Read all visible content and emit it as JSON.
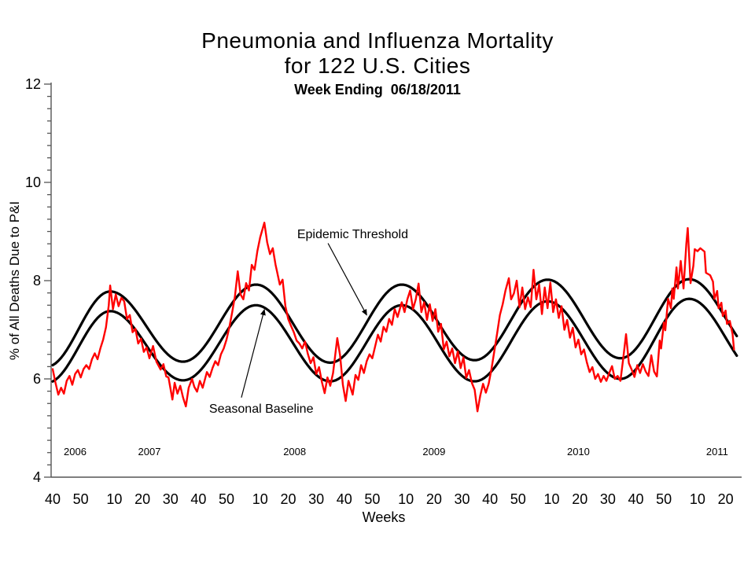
{
  "header": {
    "title_line1": "Pneumonia and Influenza Mortality",
    "title_line2": "for 122 U.S. Cities",
    "title_line3": "Week Ending  06/18/2011"
  },
  "chart_data": {
    "type": "line",
    "title": "Pneumonia and Influenza Mortality for 122 U.S. Cities",
    "subtitle": "Week Ending  06/18/2011",
    "xlabel": "Weeks",
    "ylabel": "% of All Deaths Due to P&I",
    "ylim": [
      4,
      12
    ],
    "y_major_ticks": [
      4,
      6,
      8,
      10,
      12
    ],
    "y_minor_step": 0.25,
    "x_range_weeks": [
      0,
      244
    ],
    "grid": false,
    "x_ticks": [
      {
        "t": 0,
        "label": "40"
      },
      {
        "t": 10,
        "label": "50"
      },
      {
        "t": 22,
        "label": "10"
      },
      {
        "t": 32,
        "label": "20"
      },
      {
        "t": 42,
        "label": "30"
      },
      {
        "t": 52,
        "label": "40"
      },
      {
        "t": 62,
        "label": "50"
      },
      {
        "t": 74,
        "label": "10"
      },
      {
        "t": 84,
        "label": "20"
      },
      {
        "t": 94,
        "label": "30"
      },
      {
        "t": 104,
        "label": "40"
      },
      {
        "t": 114,
        "label": "50"
      },
      {
        "t": 126,
        "label": "10"
      },
      {
        "t": 136,
        "label": "20"
      },
      {
        "t": 146,
        "label": "30"
      },
      {
        "t": 156,
        "label": "40"
      },
      {
        "t": 166,
        "label": "50"
      },
      {
        "t": 178,
        "label": "10"
      },
      {
        "t": 188,
        "label": "20"
      },
      {
        "t": 198,
        "label": "30"
      },
      {
        "t": 208,
        "label": "40"
      },
      {
        "t": 218,
        "label": "50"
      },
      {
        "t": 230,
        "label": "10"
      },
      {
        "t": 240,
        "label": "20"
      }
    ],
    "year_labels": [
      {
        "t": 8,
        "label": "2006"
      },
      {
        "t": 34.5,
        "label": "2007"
      },
      {
        "t": 86.3,
        "label": "2008"
      },
      {
        "t": 136,
        "label": "2009"
      },
      {
        "t": 187.5,
        "label": "2010"
      },
      {
        "t": 237,
        "label": "2011"
      }
    ],
    "series": [
      {
        "id": "epidemic_threshold",
        "label": "Epidemic Threshold",
        "color": "#000000",
        "width": 3.2,
        "kind": "smooth_extrema",
        "extrema": [
          [
            -2,
            6.25
          ],
          [
            20.5,
            7.78
          ],
          [
            46.5,
            6.35
          ],
          [
            72.5,
            7.92
          ],
          [
            99,
            6.33
          ],
          [
            124.5,
            7.92
          ],
          [
            150.5,
            6.38
          ],
          [
            176.5,
            8.02
          ],
          [
            202.5,
            6.42
          ],
          [
            227,
            8.03
          ],
          [
            253,
            6.45
          ]
        ]
      },
      {
        "id": "seasonal_baseline",
        "label": "Seasonal Baseline",
        "color": "#000000",
        "width": 3.2,
        "kind": "smooth_extrema",
        "extrema": [
          [
            -2,
            5.92
          ],
          [
            20.5,
            7.38
          ],
          [
            46.5,
            5.97
          ],
          [
            72.5,
            7.5
          ],
          [
            99,
            5.95
          ],
          [
            124.5,
            7.5
          ],
          [
            150.5,
            5.95
          ],
          [
            176.5,
            7.58
          ],
          [
            202.5,
            6.0
          ],
          [
            227,
            7.63
          ],
          [
            253,
            6.05
          ]
        ]
      },
      {
        "id": "observed",
        "color": "#ff0000",
        "width": 2.4,
        "kind": "points",
        "points": [
          [
            0,
            6.2
          ],
          [
            1,
            5.92
          ],
          [
            2,
            5.68
          ],
          [
            3,
            5.82
          ],
          [
            4,
            5.7
          ],
          [
            5,
            5.96
          ],
          [
            6,
            6.06
          ],
          [
            7,
            5.88
          ],
          [
            8,
            6.1
          ],
          [
            9,
            6.18
          ],
          [
            10,
            6.03
          ],
          [
            11,
            6.2
          ],
          [
            12,
            6.28
          ],
          [
            13,
            6.2
          ],
          [
            14,
            6.4
          ],
          [
            15,
            6.52
          ],
          [
            16,
            6.4
          ],
          [
            17,
            6.62
          ],
          [
            18,
            6.8
          ],
          [
            19,
            7.05
          ],
          [
            20,
            7.5
          ],
          [
            20.5,
            7.9
          ],
          [
            21.5,
            7.42
          ],
          [
            22.5,
            7.72
          ],
          [
            23.5,
            7.48
          ],
          [
            24.5,
            7.65
          ],
          [
            25.5,
            7.58
          ],
          [
            26.5,
            7.22
          ],
          [
            27.5,
            7.3
          ],
          [
            28.5,
            6.95
          ],
          [
            29.5,
            7.02
          ],
          [
            30.5,
            6.72
          ],
          [
            31.5,
            6.82
          ],
          [
            32.5,
            6.55
          ],
          [
            33.5,
            6.64
          ],
          [
            34.5,
            6.42
          ],
          [
            35.8,
            6.67
          ],
          [
            37,
            6.35
          ],
          [
            38.5,
            6.19
          ],
          [
            39.5,
            6.3
          ],
          [
            40.5,
            6.05
          ],
          [
            41.3,
            6.03
          ],
          [
            42.7,
            5.58
          ],
          [
            43.5,
            5.92
          ],
          [
            44.5,
            5.7
          ],
          [
            45.5,
            5.86
          ],
          [
            46.5,
            5.62
          ],
          [
            47.5,
            5.44
          ],
          [
            48.5,
            5.82
          ],
          [
            49.7,
            6.0
          ],
          [
            50.5,
            5.84
          ],
          [
            51.5,
            5.74
          ],
          [
            52.5,
            5.96
          ],
          [
            53.5,
            5.82
          ],
          [
            55,
            6.14
          ],
          [
            56,
            6.04
          ],
          [
            57,
            6.22
          ],
          [
            58,
            6.36
          ],
          [
            59,
            6.28
          ],
          [
            60,
            6.5
          ],
          [
            61,
            6.62
          ],
          [
            62,
            6.8
          ],
          [
            63,
            7.05
          ],
          [
            64,
            7.35
          ],
          [
            65,
            7.68
          ],
          [
            66,
            8.19
          ],
          [
            67,
            7.72
          ],
          [
            68,
            7.62
          ],
          [
            69,
            7.95
          ],
          [
            70,
            7.8
          ],
          [
            71,
            8.32
          ],
          [
            72,
            8.22
          ],
          [
            73,
            8.6
          ],
          [
            74,
            8.88
          ],
          [
            75.5,
            9.18
          ],
          [
            76.5,
            8.78
          ],
          [
            77.5,
            8.54
          ],
          [
            78.5,
            8.66
          ],
          [
            79.5,
            8.32
          ],
          [
            80,
            8.19
          ],
          [
            81,
            7.92
          ],
          [
            82,
            8.02
          ],
          [
            83,
            7.48
          ],
          [
            84,
            7.22
          ],
          [
            85,
            7.08
          ],
          [
            86,
            6.95
          ],
          [
            87,
            6.78
          ],
          [
            88,
            6.72
          ],
          [
            89,
            6.62
          ],
          [
            90,
            6.76
          ],
          [
            91,
            6.51
          ],
          [
            92,
            6.32
          ],
          [
            93,
            6.44
          ],
          [
            94,
            6.1
          ],
          [
            95,
            6.24
          ],
          [
            96,
            5.94
          ],
          [
            97,
            5.71
          ],
          [
            98,
            6.03
          ],
          [
            99,
            5.86
          ],
          [
            100,
            6.12
          ],
          [
            101.5,
            6.83
          ],
          [
            102.5,
            6.48
          ],
          [
            103.5,
            5.88
          ],
          [
            104.5,
            5.55
          ],
          [
            105.5,
            5.96
          ],
          [
            107,
            5.68
          ],
          [
            108,
            6.08
          ],
          [
            109,
            5.98
          ],
          [
            110,
            6.28
          ],
          [
            111,
            6.12
          ],
          [
            112,
            6.36
          ],
          [
            113,
            6.5
          ],
          [
            114,
            6.42
          ],
          [
            115,
            6.66
          ],
          [
            116,
            6.9
          ],
          [
            117,
            6.76
          ],
          [
            118,
            7.06
          ],
          [
            119,
            6.96
          ],
          [
            120,
            7.22
          ],
          [
            121,
            7.1
          ],
          [
            122,
            7.42
          ],
          [
            123,
            7.26
          ],
          [
            124.5,
            7.56
          ],
          [
            125.5,
            7.36
          ],
          [
            126.5,
            7.62
          ],
          [
            127.5,
            7.8
          ],
          [
            128.5,
            7.42
          ],
          [
            129.5,
            7.62
          ],
          [
            130.5,
            7.94
          ],
          [
            131.5,
            7.36
          ],
          [
            132.5,
            7.56
          ],
          [
            133.5,
            7.2
          ],
          [
            134.5,
            7.52
          ],
          [
            135.5,
            7.18
          ],
          [
            136.5,
            7.42
          ],
          [
            137.5,
            6.96
          ],
          [
            138.5,
            7.12
          ],
          [
            139.5,
            6.6
          ],
          [
            140.5,
            6.76
          ],
          [
            141.5,
            6.46
          ],
          [
            142.5,
            6.62
          ],
          [
            143.5,
            6.32
          ],
          [
            144.5,
            6.56
          ],
          [
            145.5,
            6.22
          ],
          [
            146.5,
            6.44
          ],
          [
            147.5,
            6.02
          ],
          [
            148.5,
            6.18
          ],
          [
            149.5,
            5.92
          ],
          [
            150.5,
            5.78
          ],
          [
            151.5,
            5.34
          ],
          [
            152.5,
            5.66
          ],
          [
            153.5,
            5.9
          ],
          [
            154.5,
            5.72
          ],
          [
            155.5,
            5.9
          ],
          [
            156.5,
            6.2
          ],
          [
            157.5,
            6.56
          ],
          [
            158.5,
            6.92
          ],
          [
            159.5,
            7.3
          ],
          [
            160.5,
            7.52
          ],
          [
            161.5,
            7.8
          ],
          [
            162.7,
            8.05
          ],
          [
            163.5,
            7.62
          ],
          [
            164.5,
            7.74
          ],
          [
            165.5,
            8.0
          ],
          [
            166.5,
            7.46
          ],
          [
            167.5,
            7.86
          ],
          [
            168.5,
            7.42
          ],
          [
            169.5,
            7.66
          ],
          [
            170.5,
            7.46
          ],
          [
            171.5,
            8.22
          ],
          [
            172.5,
            7.62
          ],
          [
            173.5,
            7.92
          ],
          [
            174.5,
            7.32
          ],
          [
            175.5,
            7.86
          ],
          [
            176.5,
            7.44
          ],
          [
            177.5,
            7.96
          ],
          [
            178.5,
            7.36
          ],
          [
            179.5,
            7.62
          ],
          [
            180.5,
            7.24
          ],
          [
            181.5,
            7.48
          ],
          [
            182.5,
            7.0
          ],
          [
            183.5,
            7.2
          ],
          [
            184.5,
            6.84
          ],
          [
            185.5,
            7.04
          ],
          [
            186.5,
            6.64
          ],
          [
            187.5,
            6.8
          ],
          [
            188.5,
            6.5
          ],
          [
            189.5,
            6.6
          ],
          [
            190.5,
            6.34
          ],
          [
            191.5,
            6.14
          ],
          [
            192.5,
            6.24
          ],
          [
            193.5,
            6.0
          ],
          [
            194.5,
            6.1
          ],
          [
            195.5,
            5.94
          ],
          [
            196.5,
            6.06
          ],
          [
            197.5,
            5.96
          ],
          [
            198.5,
            6.12
          ],
          [
            199.5,
            6.26
          ],
          [
            200.5,
            6.0
          ],
          [
            201.5,
            6.06
          ],
          [
            202.5,
            5.96
          ],
          [
            203.5,
            6.42
          ],
          [
            204.5,
            6.91
          ],
          [
            205.5,
            6.32
          ],
          [
            206.5,
            6.19
          ],
          [
            207.5,
            6.04
          ],
          [
            208.5,
            6.28
          ],
          [
            209.5,
            6.12
          ],
          [
            210.5,
            6.3
          ],
          [
            211.5,
            6.15
          ],
          [
            212.5,
            6.06
          ],
          [
            213.5,
            6.48
          ],
          [
            214.5,
            6.15
          ],
          [
            215.5,
            6.05
          ],
          [
            216.5,
            6.78
          ],
          [
            217,
            6.62
          ],
          [
            218,
            7.15
          ],
          [
            218.5,
            6.99
          ],
          [
            219.5,
            7.63
          ],
          [
            220.5,
            7.44
          ],
          [
            221,
            7.84
          ],
          [
            221.5,
            7.63
          ],
          [
            222.5,
            8.27
          ],
          [
            223,
            7.84
          ],
          [
            224,
            8.4
          ],
          [
            225,
            7.84
          ],
          [
            226,
            8.75
          ],
          [
            226.5,
            9.07
          ],
          [
            227.5,
            7.95
          ],
          [
            228.5,
            8.3
          ],
          [
            229,
            8.64
          ],
          [
            230,
            8.6
          ],
          [
            231,
            8.66
          ],
          [
            232.5,
            8.59
          ],
          [
            233,
            8.16
          ],
          [
            234.5,
            8.11
          ],
          [
            235.5,
            7.98
          ],
          [
            236,
            7.63
          ],
          [
            237,
            7.79
          ],
          [
            237.5,
            7.44
          ],
          [
            238.5,
            7.55
          ],
          [
            239,
            7.28
          ],
          [
            240,
            7.39
          ],
          [
            240.5,
            7.12
          ],
          [
            241.5,
            7.18
          ],
          [
            242.5,
            6.91
          ],
          [
            243,
            6.6
          ]
        ]
      }
    ],
    "annotations": [
      {
        "id": "epidemic_threshold_label",
        "text": "Epidemic Threshold",
        "text_t": 87.2,
        "text_v": 9.07,
        "arrow": {
          "tail": [
            98.2,
            8.76
          ],
          "tip": [
            112,
            7.3
          ]
        }
      },
      {
        "id": "seasonal_baseline_label",
        "text": "Seasonal Baseline",
        "text_t": 55.8,
        "text_v": 5.52,
        "arrow": {
          "tail": [
            67.3,
            5.62
          ],
          "tip": [
            75.5,
            7.41
          ]
        }
      }
    ]
  }
}
